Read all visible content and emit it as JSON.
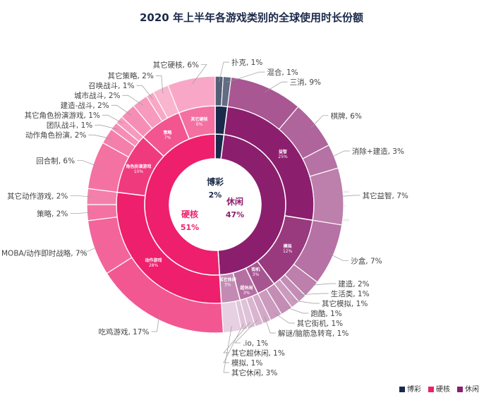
{
  "chart_data": {
    "type": "sunburst",
    "title": "2020 年上半年各游戏类别的全球使用时长份额",
    "watermark": "APP ANNIE",
    "legend_position": "bottom-right",
    "legend": [
      {
        "name": "博彩",
        "color": "#1b2a4a"
      },
      {
        "name": "硬核",
        "color": "#ee1f6c"
      },
      {
        "name": "休闲",
        "color": "#8b1f6e"
      }
    ],
    "categories": [
      {
        "name": "博彩",
        "value": 2,
        "color": "#1b2a4a",
        "children": [
          {
            "name": "博彩",
            "value": 2,
            "children": [
              {
                "name": "扑克",
                "value": 1
              },
              {
                "name": "混合",
                "value": 1
              }
            ]
          }
        ]
      },
      {
        "name": "休闲",
        "value": 47,
        "color": "#8b1f6e",
        "children": [
          {
            "name": "益智",
            "value": 25,
            "children": [
              {
                "name": "三消",
                "value": 9
              },
              {
                "name": "棋牌",
                "value": 6
              },
              {
                "name": "消除+建造",
                "value": 3
              },
              {
                "name": "其它益智",
                "value": 7
              }
            ]
          },
          {
            "name": "模拟",
            "value": 12,
            "children": [
              {
                "name": "沙盒",
                "value": 7
              },
              {
                "name": "建造",
                "value": 2
              },
              {
                "name": "生活类",
                "value": 1
              },
              {
                "name": "其它模拟",
                "value": 1
              }
            ]
          },
          {
            "name": "街机",
            "value": 3,
            "children": [
              {
                "name": "跑酷",
                "value": 1
              },
              {
                "name": "其它街机",
                "value": 1
              }
            ]
          },
          {
            "name": "超休闲",
            "value": 3,
            "children": [
              {
                "name": "解谜/脑筋急转弯",
                "value": 1
              },
              {
                "name": ".io",
                "value": 1
              },
              {
                "name": "其它超休闲",
                "value": 1
              }
            ]
          },
          {
            "name": "其它休闲",
            "value": 3,
            "children": [
              {
                "name": "模拟",
                "value": 1
              },
              {
                "name": "其它休闲",
                "value": 3
              }
            ]
          }
        ]
      },
      {
        "name": "硬核",
        "value": 51,
        "color": "#ee1f6c",
        "children": [
          {
            "name": "动作游戏",
            "value": 28,
            "children": [
              {
                "name": "吃鸡游戏",
                "value": 17
              },
              {
                "name": "MOBA/动作即时战略",
                "value": 7
              },
              {
                "name": "策略",
                "value": 2
              },
              {
                "name": "其它动作游戏",
                "value": 2
              }
            ]
          },
          {
            "name": "角色扮演游戏",
            "value": 10,
            "children": [
              {
                "name": "回合制",
                "value": 6
              },
              {
                "name": "动作角色扮演",
                "value": 2
              },
              {
                "name": "团队战斗",
                "value": 1
              },
              {
                "name": "其它角色扮演游戏",
                "value": 1
              }
            ]
          },
          {
            "name": "策略",
            "value": 7,
            "children": [
              {
                "name": "建造-战斗",
                "value": 2
              },
              {
                "name": "城市战斗",
                "value": 2
              },
              {
                "name": "召唤战斗",
                "value": 1
              },
              {
                "name": "其它策略",
                "value": 2
              }
            ]
          },
          {
            "name": "其它硬核",
            "value": 6,
            "children": [
              {
                "name": "其它硬核",
                "value": 6
              }
            ]
          }
        ]
      }
    ]
  }
}
